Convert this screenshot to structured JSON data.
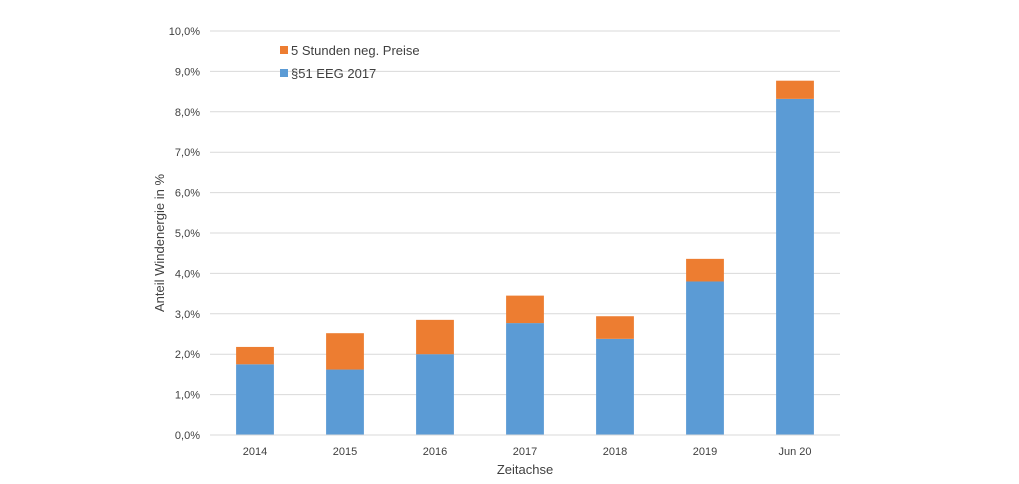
{
  "chart_data": {
    "type": "bar",
    "stacked": true,
    "categories": [
      "2014",
      "2015",
      "2016",
      "2017",
      "2018",
      "2019",
      "Jun 20"
    ],
    "series": [
      {
        "name": "§51 EEG 2017",
        "color": "#5b9bd5",
        "values": [
          1.75,
          1.62,
          2.0,
          2.77,
          2.38,
          3.8,
          8.32
        ]
      },
      {
        "name": "5 Stunden neg. Preise",
        "color": "#ed7d31",
        "values": [
          0.43,
          0.9,
          0.85,
          0.68,
          0.56,
          0.56,
          0.45
        ]
      }
    ],
    "xlabel": "Zeitachse",
    "ylabel": "Anteil Windenergie in %",
    "ylim": [
      0,
      10
    ],
    "ytick_step": 1,
    "ytick_labels": [
      "0,0%",
      "1,0%",
      "2,0%",
      "3,0%",
      "4,0%",
      "5,0%",
      "6,0%",
      "7,0%",
      "8,0%",
      "9,0%",
      "10,0%"
    ],
    "grid": true,
    "legend": {
      "placement": "top-left",
      "entries": [
        "5 Stunden neg. Preise",
        "§51 EEG 2017"
      ]
    }
  }
}
